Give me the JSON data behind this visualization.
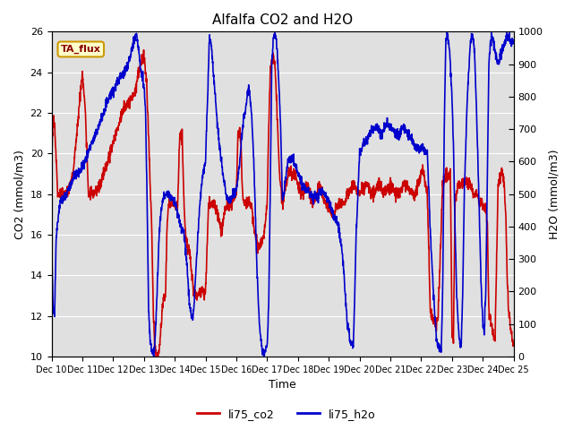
{
  "title": "Alfalfa CO2 and H2O",
  "xlabel": "Time",
  "ylabel_left": "CO2 (mmol/m3)",
  "ylabel_right": "H2O (mmol/m3)",
  "ylim_left": [
    10,
    26
  ],
  "ylim_right": [
    0,
    1000
  ],
  "yticks_left": [
    10,
    12,
    14,
    16,
    18,
    20,
    22,
    24,
    26
  ],
  "yticks_right": [
    0,
    100,
    200,
    300,
    400,
    500,
    600,
    700,
    800,
    900,
    1000
  ],
  "xtick_labels": [
    "Dec 10",
    "Dec 11",
    "Dec 12",
    "Dec 13",
    "Dec 14",
    "Dec 15",
    "Dec 16",
    "Dec 17",
    "Dec 18",
    "Dec 19",
    "Dec 20",
    "Dec 21",
    "Dec 22",
    "Dec 23",
    "Dec 24",
    "Dec 25"
  ],
  "annotation_text": "TA_flux",
  "annotation_bg": "#ffffcc",
  "annotation_border": "#cc9900",
  "color_co2": "#cc0000",
  "color_h2o": "#0000cc",
  "legend_co2": "li75_co2",
  "legend_h2o": "li75_h2o",
  "background_color": "#e0e0e0",
  "fig_bg": "#ffffff",
  "title_fontsize": 11,
  "axis_fontsize": 9,
  "tick_fontsize": 8,
  "linewidth": 1.2
}
